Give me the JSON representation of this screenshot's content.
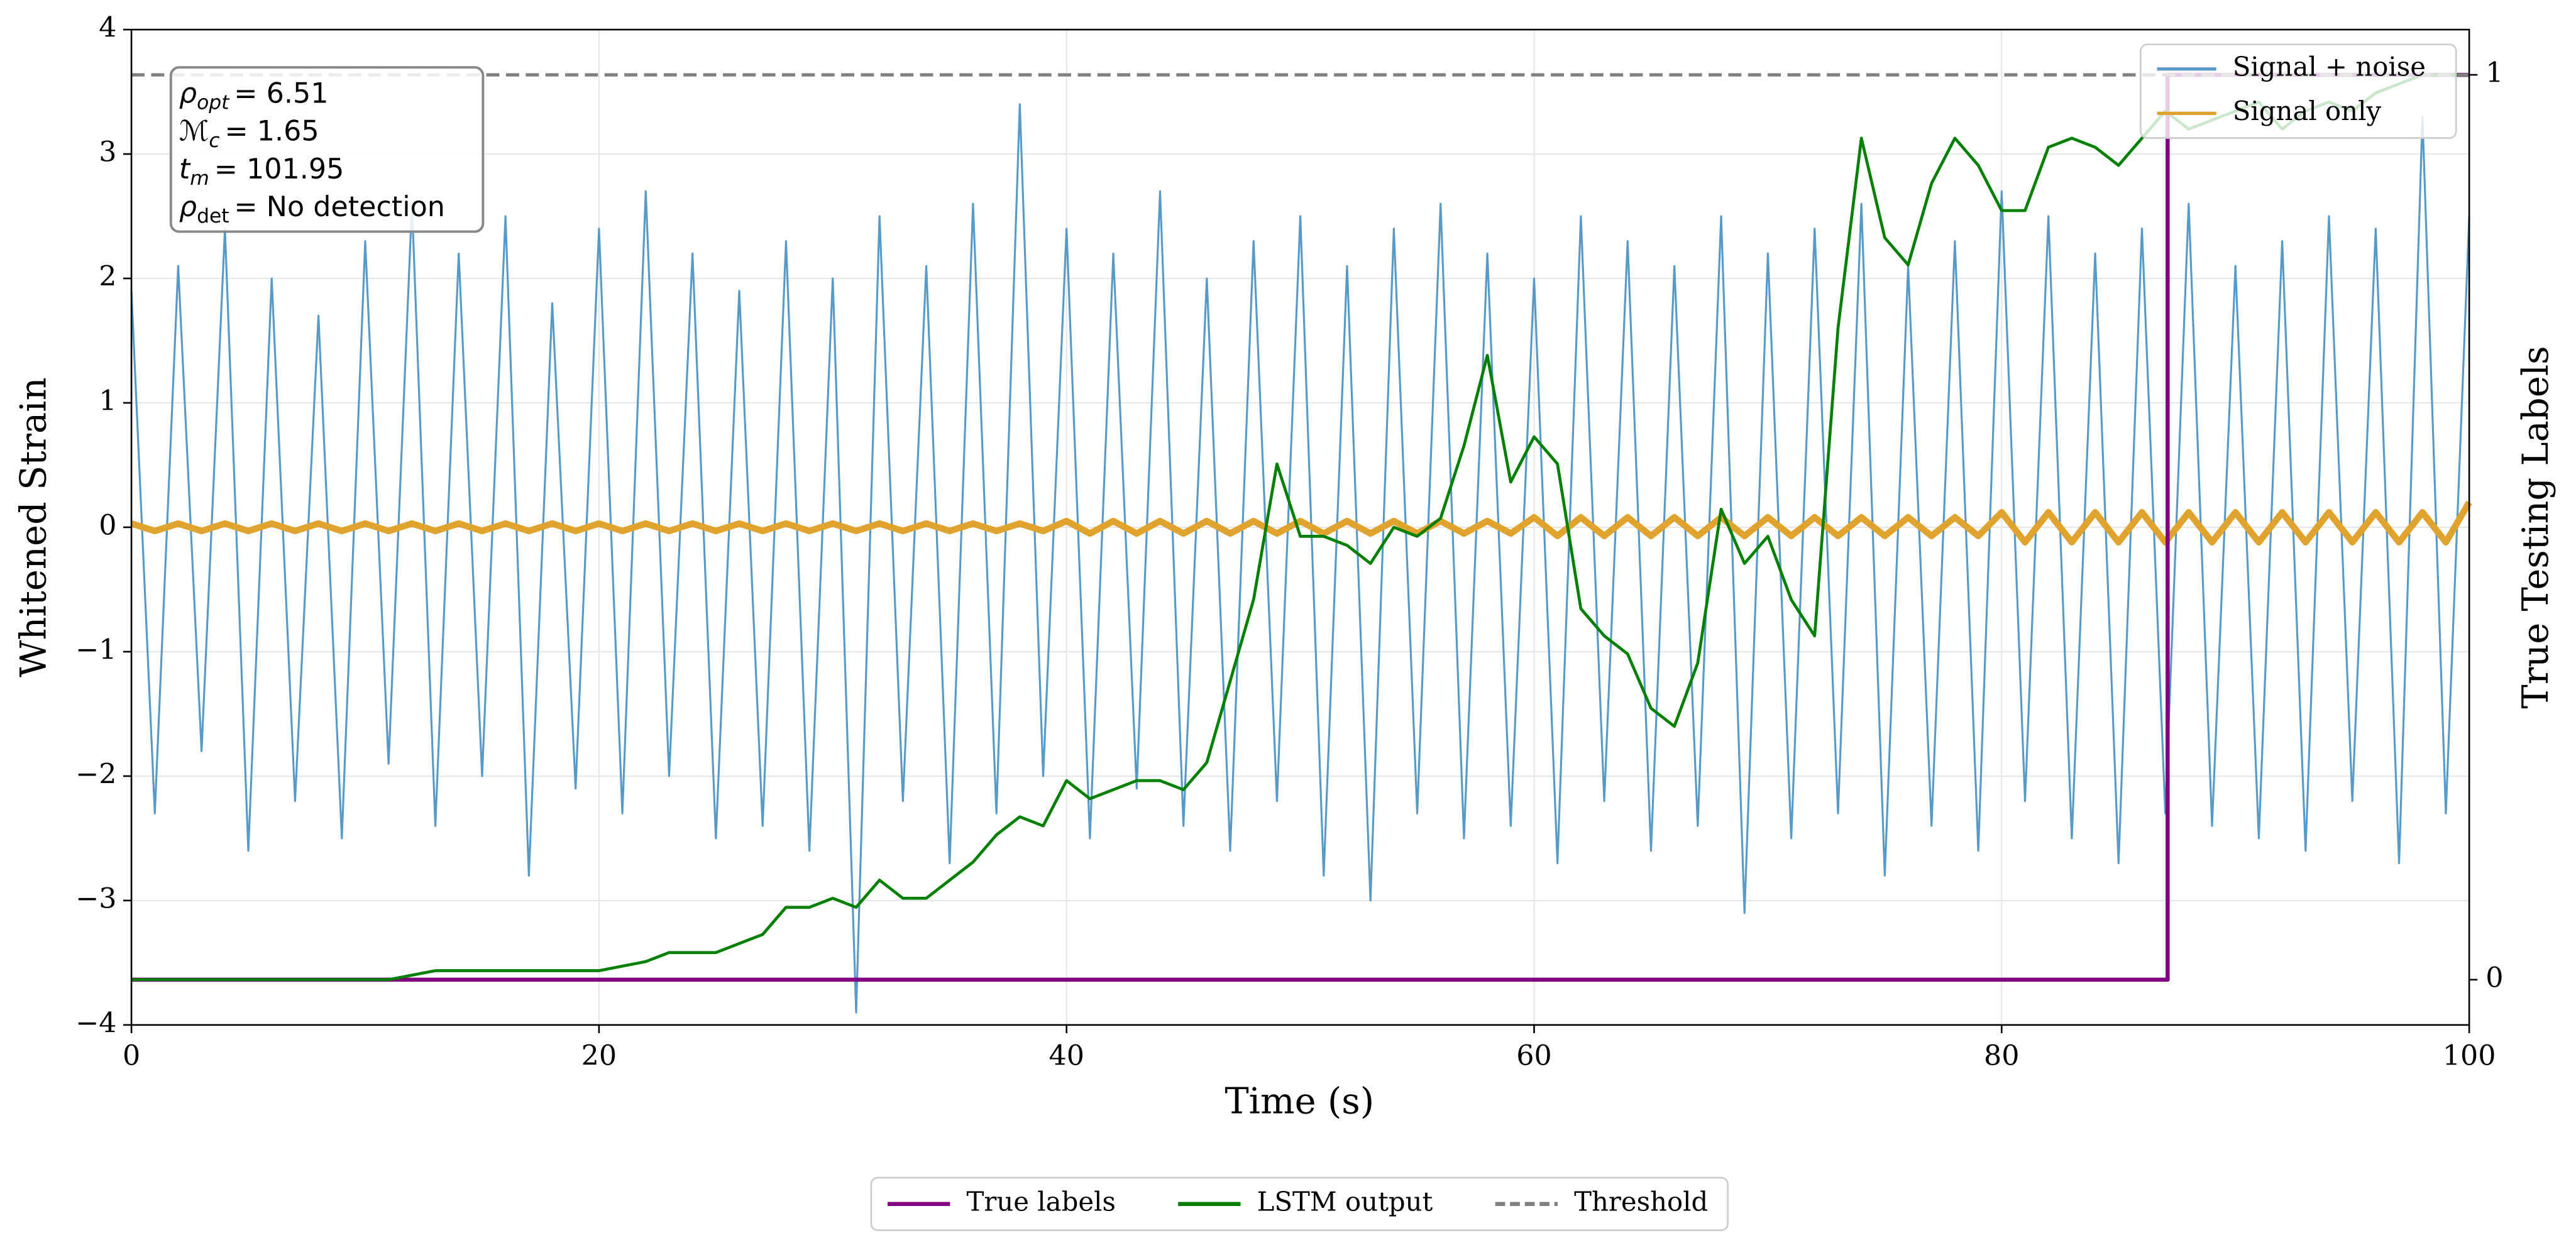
{
  "chart_data": {
    "type": "line",
    "xlabel": "Time (s)",
    "ylabel": "Whitened Strain",
    "y2label": "True Testing Labels",
    "xlim": [
      0,
      100
    ],
    "xticks": [
      0,
      20,
      40,
      60,
      80,
      100
    ],
    "ylim": [
      -4,
      4
    ],
    "yticks": [
      {
        "value": -4,
        "label": "−4"
      },
      {
        "value": -3,
        "label": "−3"
      },
      {
        "value": -2,
        "label": "−2"
      },
      {
        "value": -1,
        "label": "−1"
      },
      0,
      1,
      2,
      3,
      4
    ],
    "y2lim": [
      -0.05,
      1.05
    ],
    "y2ticks": [
      0,
      1
    ],
    "grid": true,
    "legend": "upper right",
    "legend2": "lower center",
    "annotation": [
      {
        "base": "ρ",
        "sub": "opt",
        "text": "= 6.51"
      },
      {
        "base": "ℳ",
        "sub": "c",
        "text": "= 1.65"
      },
      {
        "base": "t",
        "sub": "m",
        "text": "= 101.95"
      },
      {
        "base": "ρ",
        "sub": "det",
        "text": "= No detection"
      }
    ],
    "x": [
      0,
      1,
      2,
      3,
      4,
      5,
      6,
      7,
      8,
      9,
      10,
      11,
      12,
      13,
      14,
      15,
      16,
      17,
      18,
      19,
      20,
      21,
      22,
      23,
      24,
      25,
      26,
      27,
      28,
      29,
      30,
      31,
      32,
      33,
      34,
      35,
      36,
      37,
      38,
      39,
      40,
      41,
      42,
      43,
      44,
      45,
      46,
      47,
      48,
      49,
      50,
      51,
      52,
      53,
      54,
      55,
      56,
      57,
      58,
      59,
      60,
      61,
      62,
      63,
      64,
      65,
      66,
      67,
      68,
      69,
      70,
      71,
      72,
      73,
      74,
      75,
      76,
      77,
      78,
      79,
      80,
      81,
      82,
      83,
      84,
      85,
      86,
      87,
      88,
      89,
      90,
      91,
      92,
      93,
      94,
      95,
      96,
      97,
      98,
      99,
      100
    ],
    "series": [
      {
        "name": "Signal + noise",
        "color": "#5799c7",
        "values": [
          1.9,
          -2.3,
          2.1,
          -1.8,
          2.4,
          -2.6,
          2.0,
          -2.2,
          1.7,
          -2.5,
          2.3,
          -1.9,
          2.6,
          -2.4,
          2.2,
          -2.0,
          2.5,
          -2.8,
          1.8,
          -2.1,
          2.4,
          -2.3,
          2.7,
          -2.0,
          2.2,
          -2.5,
          1.9,
          -2.4,
          2.3,
          -2.6,
          2.0,
          -3.9,
          2.5,
          -2.2,
          2.1,
          -2.7,
          2.6,
          -2.3,
          3.4,
          -2.0,
          2.4,
          -2.5,
          2.2,
          -2.1,
          2.7,
          -2.4,
          2.0,
          -2.6,
          2.3,
          -2.2,
          2.5,
          -2.8,
          2.1,
          -3.0,
          2.4,
          -2.3,
          2.6,
          -2.5,
          2.2,
          -2.4,
          2.0,
          -2.7,
          2.5,
          -2.2,
          2.3,
          -2.6,
          2.1,
          -2.4,
          2.5,
          -3.1,
          2.2,
          -2.5,
          2.4,
          -2.3,
          2.6,
          -2.8,
          2.1,
          -2.4,
          2.3,
          -2.6,
          2.7,
          -2.2,
          2.5,
          -2.5,
          2.2,
          -2.7,
          2.4,
          -2.3,
          2.6,
          -2.4,
          2.1,
          -2.5,
          2.3,
          -2.6,
          2.5,
          -2.2,
          2.4,
          -2.7,
          3.3,
          -2.3,
          2.5
        ]
      },
      {
        "name": "Signal only",
        "color": "#e0a32e",
        "values": [
          0.03,
          -0.03,
          0.03,
          -0.03,
          0.03,
          -0.03,
          0.03,
          -0.03,
          0.03,
          -0.03,
          0.03,
          -0.03,
          0.03,
          -0.03,
          0.03,
          -0.03,
          0.03,
          -0.03,
          0.03,
          -0.03,
          0.03,
          -0.03,
          0.03,
          -0.03,
          0.03,
          -0.03,
          0.03,
          -0.03,
          0.03,
          -0.03,
          0.03,
          -0.03,
          0.03,
          -0.03,
          0.03,
          -0.03,
          0.03,
          -0.03,
          0.03,
          -0.03,
          0.05,
          -0.05,
          0.05,
          -0.05,
          0.05,
          -0.05,
          0.05,
          -0.05,
          0.05,
          -0.05,
          0.05,
          -0.05,
          0.05,
          -0.05,
          0.05,
          -0.05,
          0.05,
          -0.05,
          0.05,
          -0.05,
          0.08,
          -0.07,
          0.08,
          -0.07,
          0.08,
          -0.07,
          0.08,
          -0.07,
          0.08,
          -0.07,
          0.08,
          -0.07,
          0.08,
          -0.07,
          0.08,
          -0.07,
          0.08,
          -0.07,
          0.08,
          -0.07,
          0.12,
          -0.12,
          0.12,
          -0.12,
          0.12,
          -0.12,
          0.12,
          -0.12,
          0.12,
          -0.12,
          0.12,
          -0.12,
          0.12,
          -0.12,
          0.12,
          -0.12,
          0.12,
          -0.12,
          0.12,
          -0.12,
          0.2
        ]
      },
      {
        "name": "True labels",
        "color": "#800080",
        "axis": "y2",
        "x": [
          0,
          87.1,
          87.1,
          100
        ],
        "values": [
          0,
          0,
          1,
          1
        ]
      },
      {
        "name": "LSTM output",
        "color": "#008000",
        "axis": "y2",
        "values": [
          0,
          0,
          0,
          0,
          0,
          0,
          0,
          0,
          0,
          0,
          0,
          0,
          0.005,
          0.01,
          0.01,
          0.01,
          0.01,
          0.01,
          0.01,
          0.01,
          0.01,
          0.015,
          0.02,
          0.03,
          0.03,
          0.03,
          0.04,
          0.05,
          0.08,
          0.08,
          0.09,
          0.08,
          0.11,
          0.09,
          0.09,
          0.11,
          0.13,
          0.16,
          0.18,
          0.17,
          0.22,
          0.2,
          0.21,
          0.22,
          0.22,
          0.21,
          0.24,
          0.33,
          0.42,
          0.57,
          0.49,
          0.49,
          0.48,
          0.46,
          0.5,
          0.49,
          0.51,
          0.59,
          0.69,
          0.55,
          0.6,
          0.57,
          0.41,
          0.38,
          0.36,
          0.3,
          0.28,
          0.35,
          0.52,
          0.46,
          0.49,
          0.42,
          0.38,
          0.72,
          0.93,
          0.82,
          0.79,
          0.88,
          0.93,
          0.9,
          0.85,
          0.85,
          0.92,
          0.93,
          0.92,
          0.9,
          0.93,
          0.96,
          0.94,
          0.95,
          0.96,
          0.97,
          0.94,
          0.96,
          0.97,
          0.96,
          0.98,
          0.99,
          1.0,
          1.0,
          1.0
        ]
      }
    ],
    "threshold": {
      "name": "Threshold",
      "value": 1,
      "color": "#808080",
      "axis": "y2"
    }
  }
}
